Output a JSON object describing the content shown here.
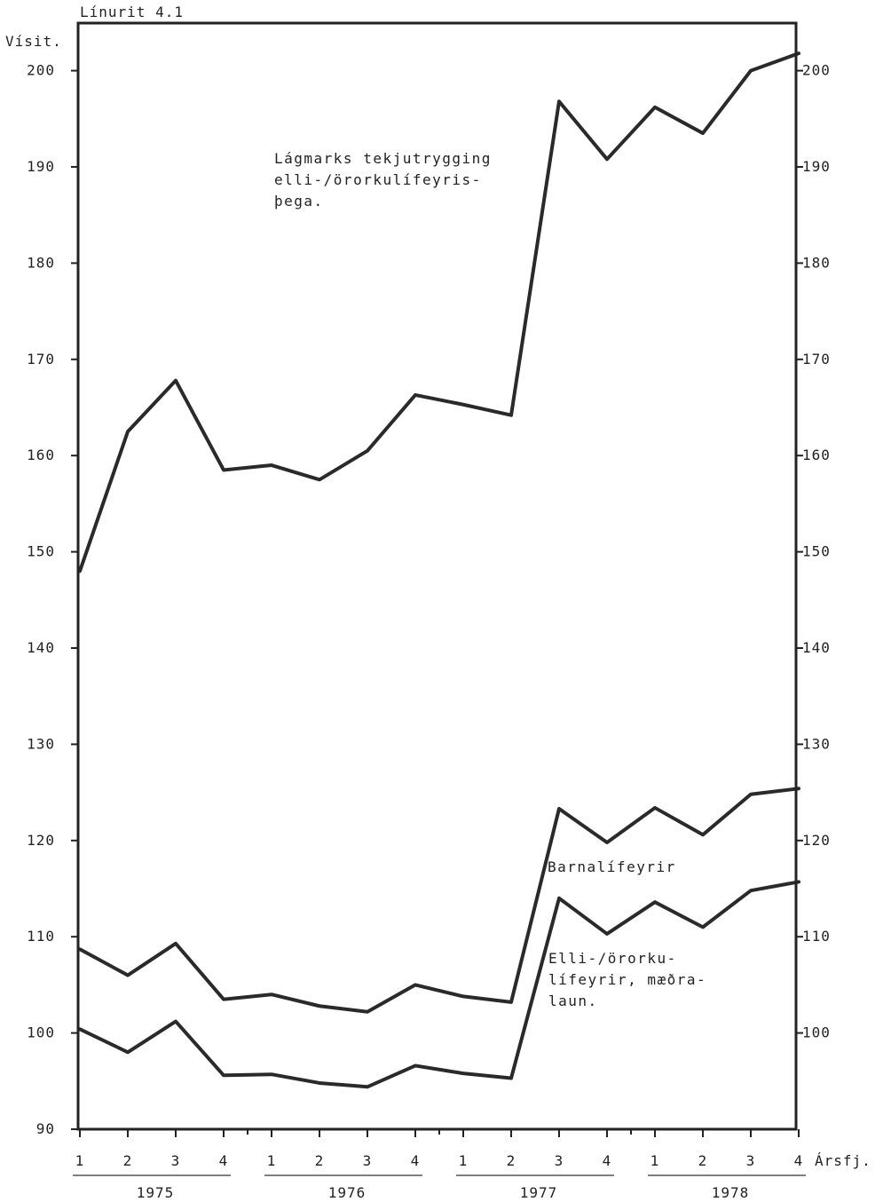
{
  "chart_data": {
    "type": "line",
    "title": "Línurit 4.1",
    "ylabel": "Vísit.",
    "xlabel": "Ársfj.",
    "ylim": [
      90,
      202
    ],
    "y_ticks": [
      90,
      100,
      110,
      120,
      130,
      140,
      150,
      160,
      170,
      180,
      190,
      200
    ],
    "right_y_ticks": [
      100,
      110,
      120,
      130,
      140,
      150,
      160,
      170,
      180,
      190,
      200
    ],
    "x_labels": [
      "1",
      "2",
      "3",
      "4",
      "1",
      "2",
      "3",
      "4",
      "1",
      "2",
      "3",
      "4",
      "1",
      "2",
      "3",
      "4"
    ],
    "years": [
      "1975",
      "1976",
      "1977",
      "1978"
    ],
    "series": [
      {
        "name": "Lágmarks tekjutrygging elli-/örorkulífeyrisþega.",
        "label_lines": [
          "Lágmarks tekjutrygging",
          "elli-/örorkulífeyris-",
          "þega."
        ],
        "values": [
          148,
          162.5,
          167.8,
          158.5,
          159,
          157.5,
          160.5,
          166.3,
          165.3,
          164.2,
          196.8,
          190.8,
          196.2,
          193.5,
          200,
          201.8
        ]
      },
      {
        "name": "Barnalífeyrir",
        "label_lines": [
          "Barnalífeyrir"
        ],
        "values": [
          108.7,
          106,
          109.3,
          103.5,
          104,
          102.8,
          102.2,
          105,
          103.8,
          103.2,
          123.3,
          119.8,
          123.4,
          120.6,
          124.8,
          125.4
        ]
      },
      {
        "name": "Elli-/örorkulífeyrir, mæðralaun.",
        "label_lines": [
          "Elli-/örorku-",
          "lífeyrir, mæðra-",
          "laun."
        ],
        "values": [
          100.4,
          98,
          101.2,
          95.6,
          95.7,
          94.8,
          94.4,
          96.6,
          95.8,
          95.3,
          114,
          110.3,
          113.6,
          111,
          114.8,
          115.7
        ]
      }
    ],
    "grid": false,
    "legend": "none"
  }
}
